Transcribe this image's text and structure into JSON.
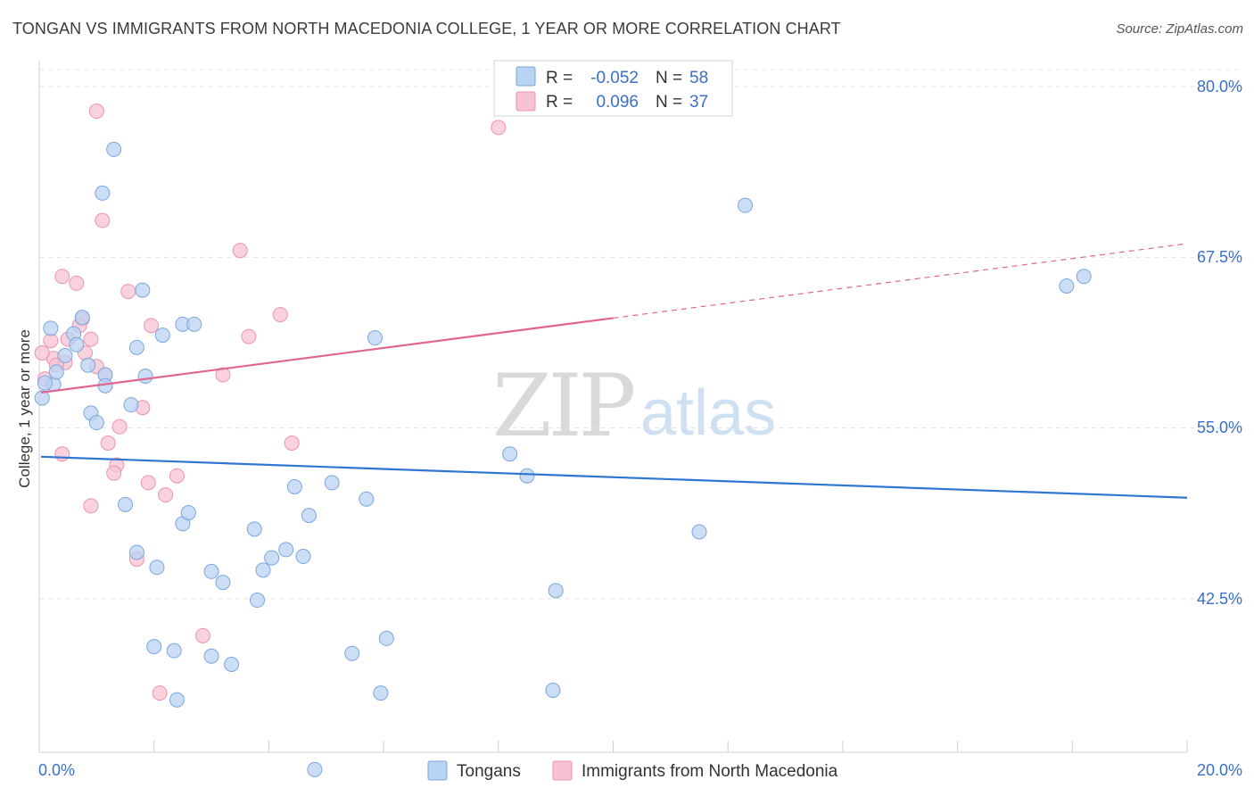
{
  "title": "TONGAN VS IMMIGRANTS FROM NORTH MACEDONIA COLLEGE, 1 YEAR OR MORE CORRELATION CHART",
  "source": "Source: ZipAtlas.com",
  "colors": {
    "blue_fill": "#b9d3f3",
    "blue_stroke": "#7aa6de",
    "blue_line": "#2f76d2",
    "pink_fill": "#f7c3d3",
    "pink_stroke": "#eb94b0",
    "pink_line": "#e0668f",
    "tick_text": "#3a6fc9"
  },
  "legend": {
    "r_label": "R =",
    "n_label": "N =",
    "blue_r": "-0.052",
    "blue_n": "58",
    "pink_r": "0.096",
    "pink_n": "37"
  },
  "watermark": {
    "zip": "ZIP",
    "atlas": "atlas"
  },
  "chart_data": {
    "type": "scatter",
    "title": "TONGAN VS IMMIGRANTS FROM NORTH MACEDONIA COLLEGE, 1 YEAR OR MORE CORRELATION CHART",
    "xlabel": "",
    "ylabel": "College, 1 year or more",
    "xlim": [
      0.0,
      20.0
    ],
    "ylim": [
      30.0,
      81.5
    ],
    "x_tick_labels": [
      "0.0%",
      "20.0%"
    ],
    "y_ticks": [
      42.5,
      55.0,
      67.5,
      80.0
    ],
    "y_tick_labels": [
      "42.5%",
      "55.0%",
      "67.5%",
      "80.0%"
    ],
    "grid": true,
    "legend_position": "top-center",
    "series": [
      {
        "name": "Tongans",
        "color": "#b9d3f3",
        "r": -0.052,
        "n": 58,
        "trend": {
          "x": [
            0.0,
            20.0
          ],
          "y": [
            52.9,
            49.9
          ],
          "dashed_from": null
        },
        "points": [
          [
            0.05,
            57.2
          ],
          [
            0.2,
            62.3
          ],
          [
            0.25,
            58.2
          ],
          [
            0.3,
            59.1
          ],
          [
            0.45,
            60.3
          ],
          [
            0.6,
            61.9
          ],
          [
            0.65,
            61.1
          ],
          [
            0.75,
            63.1
          ],
          [
            0.85,
            59.6
          ],
          [
            0.9,
            56.1
          ],
          [
            1.0,
            55.4
          ],
          [
            1.15,
            58.9
          ],
          [
            1.15,
            58.1
          ],
          [
            1.3,
            75.4
          ],
          [
            1.1,
            72.2
          ],
          [
            1.6,
            56.7
          ],
          [
            1.7,
            60.9
          ],
          [
            1.8,
            65.1
          ],
          [
            1.85,
            58.8
          ],
          [
            2.15,
            61.8
          ],
          [
            2.5,
            62.6
          ],
          [
            2.7,
            62.6
          ],
          [
            1.5,
            49.4
          ],
          [
            1.7,
            45.9
          ],
          [
            2.05,
            44.8
          ],
          [
            2.5,
            48.0
          ],
          [
            2.6,
            48.8
          ],
          [
            3.0,
            44.5
          ],
          [
            3.2,
            43.7
          ],
          [
            3.8,
            42.4
          ],
          [
            3.75,
            47.6
          ],
          [
            3.9,
            44.6
          ],
          [
            4.05,
            45.5
          ],
          [
            4.3,
            46.1
          ],
          [
            4.45,
            50.7
          ],
          [
            4.6,
            45.6
          ],
          [
            4.7,
            48.6
          ],
          [
            5.1,
            51.0
          ],
          [
            5.7,
            49.8
          ],
          [
            5.85,
            61.6
          ],
          [
            2.0,
            39.0
          ],
          [
            2.35,
            38.7
          ],
          [
            3.0,
            38.3
          ],
          [
            3.35,
            37.7
          ],
          [
            5.45,
            38.5
          ],
          [
            6.05,
            39.6
          ],
          [
            2.4,
            35.1
          ],
          [
            5.95,
            35.6
          ],
          [
            4.8,
            30.0
          ],
          [
            8.5,
            51.5
          ],
          [
            8.2,
            53.1
          ],
          [
            9.0,
            43.1
          ],
          [
            8.95,
            35.8
          ],
          [
            11.5,
            47.4
          ],
          [
            12.3,
            71.3
          ],
          [
            17.9,
            65.4
          ],
          [
            18.2,
            66.1
          ],
          [
            0.1,
            58.3
          ]
        ]
      },
      {
        "name": "Immigrants from North Macedonia",
        "color": "#f7c3d3",
        "r": 0.096,
        "n": 37,
        "trend": {
          "x": [
            0.0,
            20.0
          ],
          "y": [
            57.6,
            68.5
          ],
          "dashed_from": 10.0
        },
        "points": [
          [
            1.0,
            78.2
          ],
          [
            8.0,
            77.0
          ],
          [
            1.1,
            70.2
          ],
          [
            0.4,
            66.1
          ],
          [
            0.65,
            65.6
          ],
          [
            1.55,
            65.0
          ],
          [
            3.5,
            68.0
          ],
          [
            4.2,
            63.3
          ],
          [
            0.75,
            63.0
          ],
          [
            0.7,
            62.5
          ],
          [
            1.95,
            62.5
          ],
          [
            3.65,
            61.7
          ],
          [
            0.2,
            61.4
          ],
          [
            0.5,
            61.5
          ],
          [
            0.9,
            61.5
          ],
          [
            0.8,
            60.5
          ],
          [
            0.25,
            60.1
          ],
          [
            0.45,
            59.8
          ],
          [
            0.3,
            59.6
          ],
          [
            1.0,
            59.5
          ],
          [
            1.15,
            58.9
          ],
          [
            3.2,
            58.9
          ],
          [
            0.1,
            58.6
          ],
          [
            0.05,
            60.5
          ],
          [
            1.8,
            56.5
          ],
          [
            1.4,
            55.1
          ],
          [
            1.2,
            53.9
          ],
          [
            4.4,
            53.9
          ],
          [
            0.4,
            53.1
          ],
          [
            1.35,
            52.3
          ],
          [
            1.3,
            51.7
          ],
          [
            1.9,
            51.0
          ],
          [
            2.4,
            51.5
          ],
          [
            2.2,
            50.1
          ],
          [
            0.9,
            49.3
          ],
          [
            1.7,
            45.4
          ],
          [
            2.85,
            39.8
          ]
        ]
      }
    ],
    "extra_pink_points": [
      [
        2.1,
        35.6
      ]
    ]
  }
}
